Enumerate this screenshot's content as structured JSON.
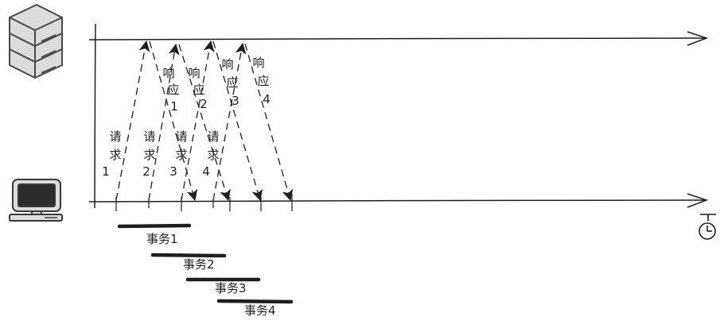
{
  "requests": [
    {
      "chars": [
        "请",
        "求",
        "1"
      ]
    },
    {
      "chars": [
        "请",
        "求",
        "2"
      ]
    },
    {
      "chars": [
        "请",
        "求",
        "3"
      ]
    },
    {
      "chars": [
        "请",
        "求",
        "4"
      ]
    }
  ],
  "responses": [
    {
      "chars": [
        "响",
        "应",
        "1"
      ]
    },
    {
      "chars": [
        "响",
        "应",
        "2"
      ]
    },
    {
      "chars": [
        "响",
        "应",
        "3"
      ]
    },
    {
      "chars": [
        "响",
        "应",
        "4"
      ]
    }
  ],
  "transactions": [
    {
      "label": "事务1"
    },
    {
      "label": "事务2"
    },
    {
      "label": "事务3"
    },
    {
      "label": "事务4"
    }
  ],
  "icons": {
    "server": "server-icon",
    "client": "computer-icon",
    "time": "stopwatch-icon"
  },
  "colors": {
    "stroke": "#1e1e1e",
    "icon_fill": "#dcdcdc"
  }
}
